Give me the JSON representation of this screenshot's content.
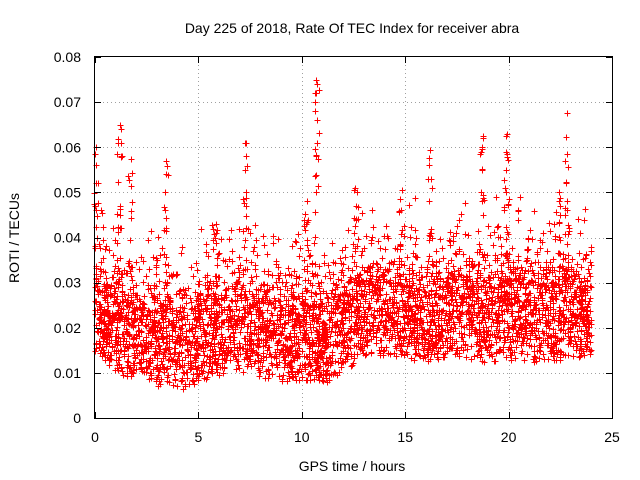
{
  "chart_data": {
    "type": "scatter",
    "title": "Day 225 of 2018, Rate Of TEC Index for receiver abra",
    "xlabel": "GPS time / hours",
    "ylabel": "ROTI / TECUs",
    "xlim": [
      0,
      25
    ],
    "ylim": [
      0,
      0.08
    ],
    "xticks": [
      0,
      5,
      10,
      15,
      20,
      25
    ],
    "yticks": [
      0,
      0.01,
      0.02,
      0.03,
      0.04,
      0.05,
      0.06,
      0.07,
      0.08
    ],
    "xtick_labels": [
      "0",
      "5",
      "10",
      "15",
      "20",
      "25"
    ],
    "ytick_labels": [
      "0",
      "0.01",
      "0.02",
      "0.03",
      "0.04",
      "0.05",
      "0.06",
      "0.07",
      "0.08"
    ],
    "grid": true,
    "marker": "+",
    "series_color": "#ff0000",
    "x_data_range": [
      0,
      24
    ],
    "series": [
      {
        "name": "ROTI",
        "baseline": [
          [
            0,
            0.022
          ],
          [
            1,
            0.019
          ],
          [
            2,
            0.017
          ],
          [
            3,
            0.016
          ],
          [
            4,
            0.015
          ],
          [
            5,
            0.016
          ],
          [
            6,
            0.018
          ],
          [
            7,
            0.019
          ],
          [
            8,
            0.018
          ],
          [
            9,
            0.017
          ],
          [
            10,
            0.017
          ],
          [
            11,
            0.016
          ],
          [
            12,
            0.019
          ],
          [
            13,
            0.022
          ],
          [
            14,
            0.023
          ],
          [
            15,
            0.022
          ],
          [
            16,
            0.021
          ],
          [
            17,
            0.022
          ],
          [
            18,
            0.022
          ],
          [
            19,
            0.021
          ],
          [
            20,
            0.022
          ],
          [
            21,
            0.021
          ],
          [
            22,
            0.021
          ],
          [
            23,
            0.022
          ],
          [
            24,
            0.021
          ]
        ],
        "spikes": [
          {
            "x": 0.05,
            "values": [
              0.06,
              0.056,
              0.052,
              0.046,
              0.04
            ]
          },
          {
            "x": 1.2,
            "values": [
              0.065,
              0.064,
              0.061,
              0.058,
              0.047
            ]
          },
          {
            "x": 1.7,
            "values": [
              0.0575
            ]
          },
          {
            "x": 3.4,
            "values": [
              0.057,
              0.054,
              0.05,
              0.046,
              0.042
            ]
          },
          {
            "x": 5.8,
            "values": [
              0.043,
              0.04
            ]
          },
          {
            "x": 7.3,
            "values": [
              0.061,
              0.058,
              0.055,
              0.05,
              0.047
            ]
          },
          {
            "x": 10.7,
            "values": [
              0.075,
              0.074,
              0.072,
              0.068,
              0.066,
              0.061,
              0.058,
              0.05
            ]
          },
          {
            "x": 10.2,
            "values": [
              0.048,
              0.043
            ]
          },
          {
            "x": 12.6,
            "values": [
              0.051,
              0.047,
              0.044
            ]
          },
          {
            "x": 14.8,
            "values": [
              0.0505,
              0.046
            ]
          },
          {
            "x": 16.2,
            "values": [
              0.0595,
              0.056,
              0.053
            ]
          },
          {
            "x": 18.7,
            "values": [
              0.0625,
              0.059,
              0.055,
              0.05
            ]
          },
          {
            "x": 19.9,
            "values": [
              0.063,
              0.059,
              0.055,
              0.05
            ]
          },
          {
            "x": 22.8,
            "values": [
              0.0675,
              0.0585,
              0.052,
              0.048
            ]
          },
          {
            "x": 22.5,
            "values": [
              0.05,
              0.047
            ]
          }
        ]
      }
    ]
  }
}
